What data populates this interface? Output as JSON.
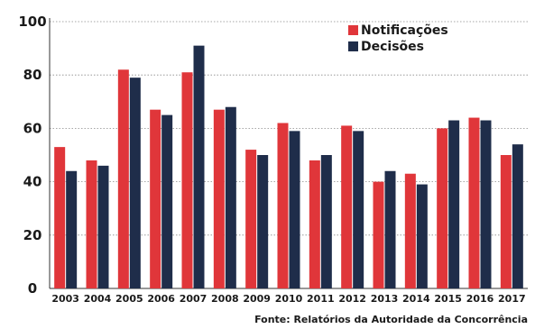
{
  "chart_data": {
    "type": "bar",
    "categories": [
      "2003",
      "2004",
      "2005",
      "2006",
      "2007",
      "2008",
      "2009",
      "2010",
      "2011",
      "2012",
      "2013",
      "2014",
      "2015",
      "2016",
      "2017"
    ],
    "series": [
      {
        "name": "Notificações",
        "color": "#e0363a",
        "values": [
          53,
          48,
          82,
          67,
          81,
          67,
          52,
          62,
          48,
          61,
          40,
          43,
          60,
          64,
          50
        ]
      },
      {
        "name": "Decisões",
        "color": "#1f2d4a",
        "values": [
          44,
          46,
          79,
          65,
          91,
          68,
          50,
          59,
          50,
          59,
          44,
          39,
          63,
          63,
          54
        ]
      }
    ],
    "ylim": [
      0,
      100
    ],
    "yticks": [
      0,
      20,
      40,
      60,
      80,
      100
    ],
    "grid": true,
    "legend": "top-right",
    "title": "",
    "xlabel": "",
    "ylabel": ""
  },
  "source": "Fonte: Relatórios da Autoridade da Concorrência"
}
